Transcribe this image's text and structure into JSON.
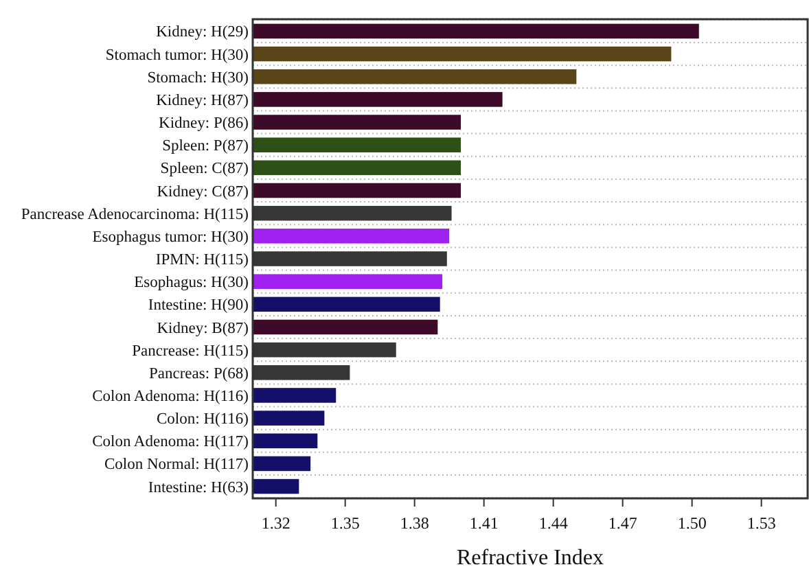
{
  "chart_data": {
    "type": "bar",
    "orientation": "horizontal",
    "xlabel": "Refractive Index",
    "categories": [
      "Kidney: H(29)",
      "Stomach tumor: H(30)",
      "Stomach: H(30)",
      "Kidney: H(87)",
      "Kidney: P(86)",
      "Spleen: P(87)",
      "Spleen: C(87)",
      "Kidney: C(87)",
      "Pancrease Adenocarcinoma: H(115)",
      "Esophagus tumor: H(30)",
      "IPMN: H(115)",
      "Esophagus: H(30)",
      "Intestine: H(90)",
      "Kidney: B(87)",
      "Pancrease: H(115)",
      "Pancreas: P(68)",
      "Colon Adenoma: H(116)",
      "Colon: H(116)",
      "Colon Adenoma: H(117)",
      "Colon Normal: H(117)",
      "Intestine: H(63)"
    ],
    "values": [
      1.503,
      1.491,
      1.45,
      1.418,
      1.4,
      1.4,
      1.4,
      1.4,
      1.396,
      1.395,
      1.394,
      1.392,
      1.391,
      1.39,
      1.372,
      1.352,
      1.346,
      1.341,
      1.338,
      1.335,
      1.33
    ],
    "colors": [
      "#3d0a2a",
      "#5a4519",
      "#5a4519",
      "#3d0a2a",
      "#3d0a2a",
      "#2d5016",
      "#2d5016",
      "#3d0a2a",
      "#363636",
      "#a020f0",
      "#363636",
      "#a020f0",
      "#14106a",
      "#3d0a2a",
      "#363636",
      "#363636",
      "#14106a",
      "#14106a",
      "#14106a",
      "#14106a",
      "#14106a"
    ],
    "xlim": [
      1.31,
      1.55
    ],
    "xticks": [
      1.32,
      1.35,
      1.38,
      1.41,
      1.44,
      1.47,
      {
        "value": 1.5,
        "label": "1.50"
      },
      1.53
    ],
    "grid": "y"
  }
}
